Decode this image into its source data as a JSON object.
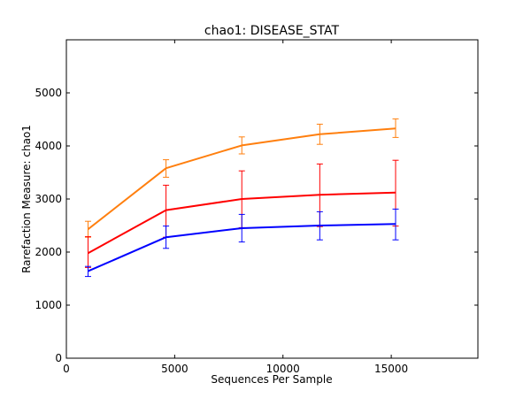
{
  "chart_data": {
    "type": "line",
    "title": "chao1: DISEASE_STAT",
    "xlabel": "Sequences Per Sample",
    "ylabel": "Rarefaction Measure: chao1",
    "xlim": [
      0,
      19000
    ],
    "ylim": [
      0,
      6000
    ],
    "xticks": [
      0,
      5000,
      10000,
      15000
    ],
    "xtick_labels": [
      "0",
      "5000",
      "10000",
      "15000"
    ],
    "yticks": [
      0,
      1000,
      2000,
      3000,
      4000,
      5000
    ],
    "ytick_labels": [
      "0",
      "1000",
      "2000",
      "3000",
      "4000",
      "5000"
    ],
    "grid": false,
    "x": [
      1000,
      4600,
      8100,
      11700,
      15200
    ],
    "series": [
      {
        "color": "#ff7f0e",
        "values": [
          2430,
          3580,
          4010,
          4220,
          4330
        ],
        "err_low": [
          2280,
          3410,
          3850,
          4030,
          4160
        ],
        "err_high": [
          2580,
          3740,
          4170,
          4410,
          4510
        ]
      },
      {
        "color": "#ff0000",
        "values": [
          1980,
          2790,
          3000,
          3080,
          3120
        ],
        "err_low": [
          1710,
          2280,
          2460,
          2480,
          2490
        ],
        "err_high": [
          2290,
          3260,
          3530,
          3660,
          3730
        ]
      },
      {
        "color": "#0000ff",
        "values": [
          1640,
          2280,
          2450,
          2500,
          2530
        ],
        "err_low": [
          1540,
          2070,
          2190,
          2230,
          2230
        ],
        "err_high": [
          1730,
          2490,
          2710,
          2760,
          2810
        ]
      }
    ]
  }
}
